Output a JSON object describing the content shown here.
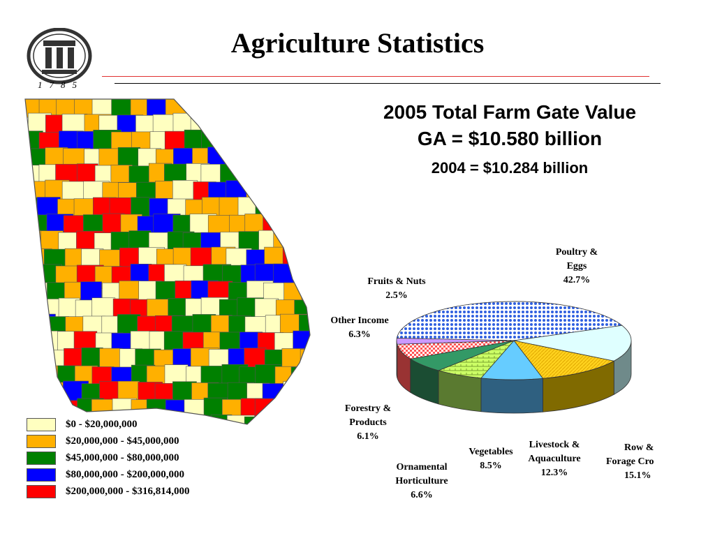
{
  "slide": {
    "title": "Agriculture Statistics",
    "logo_year": "1785",
    "summary_line1": "2005 Total Farm Gate Value",
    "summary_line2": "GA = $10.580 billion",
    "summary_line3": "2004 = $10.284 billion"
  },
  "map": {
    "legend": [
      {
        "label": "$0 - $20,000,000",
        "color": "#ffffc0"
      },
      {
        "label": "$20,000,000 - $45,000,000",
        "color": "#ffb000"
      },
      {
        "label": "$45,000,000 - $80,000,000",
        "color": "#008000"
      },
      {
        "label": "$80,000,000 - $200,000,000",
        "color": "#0000ff"
      },
      {
        "label": "$200,000,000 - $316,814,000",
        "color": "#ff0000"
      }
    ]
  },
  "chart_data": {
    "type": "pie",
    "slices": [
      {
        "name": "Poultry & Eggs",
        "label_lines": [
          "Poultry &",
          "Eggs",
          "42.7%"
        ],
        "value": 42.7,
        "color": "#3060e0",
        "side": "#2b4ba0"
      },
      {
        "name": "Row & Forage Crops",
        "label_lines": [
          "Row &",
          "Forage Cro",
          "15.1%"
        ],
        "value": 15.1,
        "color": "#dfffff",
        "side": "#6f8a8a"
      },
      {
        "name": "Livestock & Aquaculture",
        "label_lines": [
          "Livestock &",
          "Aquaculture",
          "12.3%"
        ],
        "value": 12.3,
        "color": "#ffd21e",
        "side": "#806a00"
      },
      {
        "name": "Vegetables",
        "label_lines": [
          "Vegetables",
          "8.5%"
        ],
        "value": 8.5,
        "color": "#66ccff",
        "side": "#2f6080"
      },
      {
        "name": "Ornamental Horticulture",
        "label_lines": [
          "Ornamental",
          "Horticulture",
          "6.6%"
        ],
        "value": 6.6,
        "color": "#ccff66",
        "side": "#5a7a30"
      },
      {
        "name": "Forestry & Products",
        "label_lines": [
          "Forestry &",
          "Products",
          "6.1%"
        ],
        "value": 6.1,
        "color": "#339966",
        "side": "#1b4d33"
      },
      {
        "name": "Other Income",
        "label_lines": [
          "Other Income",
          "6.3%"
        ],
        "value": 6.3,
        "color": "#ff9999",
        "side": "#993333"
      },
      {
        "name": "Fruits & Nuts",
        "label_lines": [
          "Fruits & Nuts",
          "2.5%"
        ],
        "value": 2.5,
        "color": "#cc99ff",
        "side": "#664d80"
      }
    ]
  }
}
